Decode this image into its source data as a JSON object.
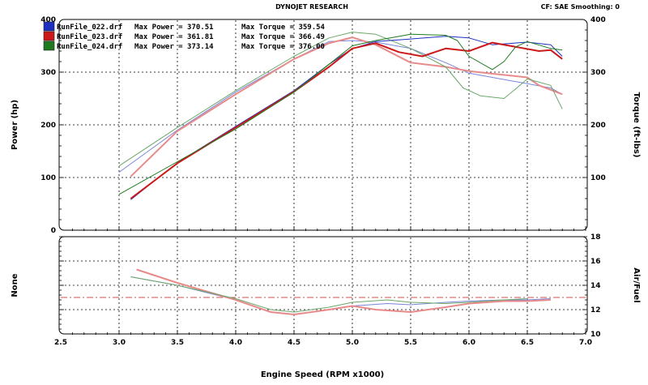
{
  "header": {
    "title": "DYNOJET RESEARCH",
    "right": "CF: SAE   Smoothing: 0"
  },
  "colors": {
    "run022": "#1c2fbf",
    "run023": "#cc1a1a",
    "run024": "#1e7a1e",
    "run023_light": "#e88a8a",
    "run022_light": "#7a85d9",
    "run024_light": "#6aa86a",
    "ref_line": "#d05050"
  },
  "chart_data": [
    {
      "type": "line",
      "title": "",
      "xlabel": "Engine Speed (RPM x1000)",
      "ylabel": "Power (hp)",
      "y2label": "Torque (ft-lbs)",
      "xlim": [
        2.5,
        7.0
      ],
      "ylim": [
        0,
        400
      ],
      "y2lim": [
        0,
        400
      ],
      "x_ticks": [
        "2.5",
        "3.0",
        "3.5",
        "4.0",
        "4.5",
        "5.0",
        "5.5",
        "6.0",
        "6.5",
        "7.0"
      ],
      "y_ticks": [
        "0",
        "100",
        "200",
        "300",
        "400"
      ],
      "y2_ticks": [
        "100",
        "200",
        "300",
        "400"
      ],
      "grid": true,
      "legend": [
        {
          "file": "RunFile_022.drf",
          "power": "Max Power = 370.51",
          "torque": "Max Torque = 359.54",
          "color_key": "run022"
        },
        {
          "file": "RunFile_023.drf",
          "power": "Max Power = 361.81",
          "torque": "Max Torque = 366.49",
          "color_key": "run023"
        },
        {
          "file": "RunFile_024.drf",
          "power": "Max Power = 373.14",
          "torque": "Max Torque = 376.00",
          "color_key": "run024"
        }
      ],
      "series": [
        {
          "run": "RunFile_022.drf",
          "measure": "power",
          "color_key": "run022",
          "width": 1,
          "x": [
            3.1,
            3.5,
            4.0,
            4.5,
            4.8,
            5.0,
            5.2,
            5.5,
            5.8,
            6.0,
            6.2,
            6.5,
            6.7,
            6.8
          ],
          "y": [
            58,
            128,
            197,
            265,
            315,
            345,
            358,
            363,
            368,
            365,
            352,
            357,
            352,
            330
          ]
        },
        {
          "run": "RunFile_023.drf",
          "measure": "power",
          "color_key": "run023",
          "width": 2,
          "x": [
            3.1,
            3.5,
            4.0,
            4.5,
            4.8,
            5.0,
            5.2,
            5.4,
            5.6,
            5.8,
            6.0,
            6.2,
            6.4,
            6.6,
            6.7,
            6.8
          ],
          "y": [
            60,
            127,
            195,
            263,
            310,
            345,
            355,
            338,
            330,
            345,
            340,
            356,
            348,
            340,
            342,
            325
          ]
        },
        {
          "run": "RunFile_024.drf",
          "measure": "power",
          "color_key": "run024",
          "width": 1,
          "x": [
            3.0,
            3.5,
            4.0,
            4.5,
            4.8,
            5.0,
            5.2,
            5.5,
            5.8,
            5.9,
            6.0,
            6.2,
            6.3,
            6.4,
            6.5,
            6.7,
            6.8
          ],
          "y": [
            68,
            130,
            192,
            262,
            315,
            350,
            360,
            372,
            370,
            360,
            330,
            305,
            320,
            348,
            358,
            345,
            342
          ]
        },
        {
          "run": "RunFile_022.drf",
          "measure": "torque",
          "color_key": "run022_light",
          "width": 1,
          "x": [
            3.0,
            3.5,
            4.0,
            4.5,
            4.8,
            5.0,
            5.2,
            5.5,
            5.8,
            6.0,
            6.2,
            6.5,
            6.7,
            6.8
          ],
          "y": [
            110,
            190,
            262,
            325,
            358,
            360,
            357,
            345,
            318,
            298,
            290,
            278,
            270,
            258
          ]
        },
        {
          "run": "RunFile_023.drf",
          "measure": "torque",
          "color_key": "run023_light",
          "width": 2,
          "x": [
            3.1,
            3.5,
            4.0,
            4.5,
            4.8,
            5.0,
            5.2,
            5.5,
            5.8,
            6.0,
            6.2,
            6.5,
            6.6,
            6.8
          ],
          "y": [
            102,
            188,
            258,
            325,
            355,
            366,
            352,
            318,
            310,
            302,
            297,
            290,
            275,
            258
          ]
        },
        {
          "run": "RunFile_024.drf",
          "measure": "torque",
          "color_key": "run024_light",
          "width": 1,
          "x": [
            3.0,
            3.5,
            4.0,
            4.5,
            4.8,
            5.0,
            5.2,
            5.5,
            5.8,
            5.95,
            6.1,
            6.3,
            6.4,
            6.5,
            6.7,
            6.8
          ],
          "y": [
            122,
            195,
            265,
            330,
            365,
            376,
            372,
            345,
            310,
            270,
            255,
            250,
            268,
            287,
            275,
            230
          ]
        }
      ]
    },
    {
      "type": "line",
      "title": "",
      "xlabel": "Engine Speed (RPM x1000)",
      "ylabel": "None",
      "y2label": "Air/Fuel",
      "xlim": [
        2.5,
        7.0
      ],
      "y2lim": [
        10,
        18
      ],
      "y2_ticks": [
        "10",
        "12",
        "14",
        "16",
        "18"
      ],
      "reference_line": 13.0,
      "grid": true,
      "series": [
        {
          "run": "RunFile_022.drf",
          "color_key": "run022_light",
          "width": 1,
          "x": [
            3.1,
            3.5,
            4.0,
            4.3,
            4.5,
            4.8,
            5.0,
            5.3,
            5.5,
            5.8,
            6.0,
            6.3,
            6.5,
            6.7
          ],
          "y": [
            14.7,
            14.0,
            12.8,
            11.8,
            11.6,
            12.0,
            12.3,
            12.5,
            12.4,
            12.6,
            12.7,
            12.8,
            12.8,
            12.9
          ]
        },
        {
          "run": "RunFile_023.drf",
          "color_key": "run023_light",
          "width": 2,
          "x": [
            3.15,
            3.5,
            4.0,
            4.3,
            4.5,
            4.8,
            5.0,
            5.2,
            5.5,
            5.8,
            6.0,
            6.3,
            6.5,
            6.7
          ],
          "y": [
            15.3,
            14.2,
            12.8,
            11.8,
            11.6,
            12.0,
            12.3,
            12.0,
            11.8,
            12.2,
            12.5,
            12.7,
            12.7,
            12.8
          ]
        },
        {
          "run": "RunFile_024.drf",
          "color_key": "run024_light",
          "width": 1,
          "x": [
            3.1,
            3.5,
            4.0,
            4.3,
            4.5,
            4.8,
            5.0,
            5.3,
            5.5,
            5.8,
            6.0,
            6.3,
            6.5
          ],
          "y": [
            14.7,
            14.0,
            12.9,
            12.0,
            11.8,
            12.2,
            12.6,
            12.8,
            12.6,
            12.5,
            12.6,
            12.8,
            12.9
          ]
        }
      ]
    }
  ]
}
